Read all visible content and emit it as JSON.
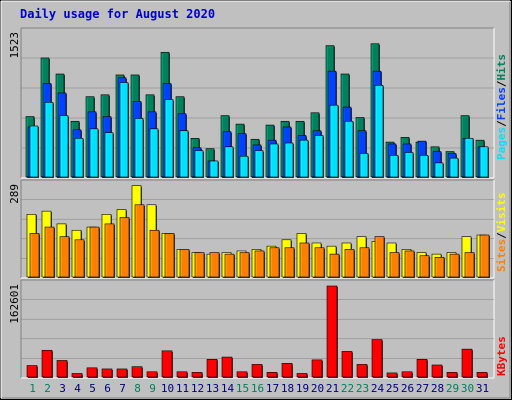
{
  "title": "Daily usage for August 2020",
  "colors": {
    "background": "#c0c0c0",
    "plot_background": "#c0c0c0",
    "title": "#0000cc",
    "hits": "#00805c",
    "files": "#0040ff",
    "pages": "#00e0ff",
    "visits": "#ffff00",
    "sites": "#ff8000",
    "kbytes": "#ff0000",
    "weekend_label": "#00805c",
    "weekday_label": "#000080"
  },
  "chart_data": [
    {
      "type": "bar",
      "name": "hits-files-pages",
      "ymax_label": "1523",
      "ymax": 1523,
      "legend": [
        "Pages",
        "Files",
        "Hits"
      ],
      "series": [
        {
          "name": "Hits",
          "values": [
            650,
            1270,
            1100,
            600,
            860,
            880,
            1090,
            1090,
            880,
            1330,
            860,
            420,
            310,
            660,
            570,
            410,
            560,
            600,
            600,
            690,
            1400,
            1100,
            640,
            1420,
            380,
            430,
            380,
            330,
            280,
            660,
            400
          ]
        },
        {
          "name": "Files",
          "values": [
            540,
            1000,
            900,
            510,
            700,
            650,
            1060,
            810,
            700,
            1000,
            680,
            320,
            180,
            490,
            470,
            350,
            400,
            540,
            450,
            500,
            1130,
            750,
            500,
            1130,
            360,
            360,
            390,
            280,
            260,
            420,
            330
          ]
        },
        {
          "name": "Pages",
          "values": [
            550,
            800,
            660,
            420,
            520,
            480,
            1010,
            630,
            520,
            830,
            500,
            290,
            180,
            330,
            230,
            290,
            360,
            370,
            400,
            450,
            770,
            600,
            260,
            980,
            240,
            270,
            240,
            160,
            210,
            420,
            330
          ]
        }
      ]
    },
    {
      "type": "bar",
      "name": "visits-sites",
      "ymax_label": "289",
      "ymax": 289,
      "legend": [
        "Sites",
        "Visits"
      ],
      "series": [
        {
          "name": "Visits",
          "values": [
            200,
            210,
            170,
            150,
            160,
            200,
            215,
            290,
            230,
            140,
            90,
            80,
            75,
            80,
            85,
            90,
            100,
            120,
            140,
            110,
            100,
            110,
            130,
            115,
            110,
            90,
            80,
            75,
            80,
            130,
            135
          ]
        },
        {
          "name": "Sites",
          "values": [
            140,
            160,
            130,
            120,
            160,
            170,
            190,
            230,
            150,
            140,
            90,
            80,
            80,
            75,
            80,
            85,
            95,
            95,
            110,
            95,
            75,
            90,
            95,
            130,
            80,
            85,
            70,
            65,
            75,
            80,
            135
          ]
        }
      ]
    },
    {
      "type": "bar",
      "name": "kbytes",
      "ymax_label": "162601",
      "ymax": 162601,
      "legend": [
        "KBytes"
      ],
      "series": [
        {
          "name": "KBytes",
          "values": [
            22000,
            49000,
            31000,
            8000,
            18000,
            16000,
            16000,
            20000,
            11000,
            48000,
            11000,
            10000,
            33000,
            37000,
            11000,
            24000,
            10000,
            26000,
            8000,
            32000,
            162601,
            47000,
            24000,
            68000,
            9000,
            11000,
            33000,
            23000,
            10000,
            51000,
            10000
          ]
        }
      ]
    }
  ],
  "days": [
    "1",
    "2",
    "3",
    "4",
    "5",
    "6",
    "7",
    "8",
    "9",
    "10",
    "11",
    "12",
    "13",
    "14",
    "15",
    "16",
    "17",
    "18",
    "19",
    "20",
    "21",
    "22",
    "23",
    "24",
    "25",
    "26",
    "27",
    "28",
    "29",
    "30",
    "31"
  ],
  "weekend_days": [
    1,
    2,
    8,
    9,
    15,
    16,
    22,
    23,
    29,
    30
  ],
  "legend_separator": "/"
}
